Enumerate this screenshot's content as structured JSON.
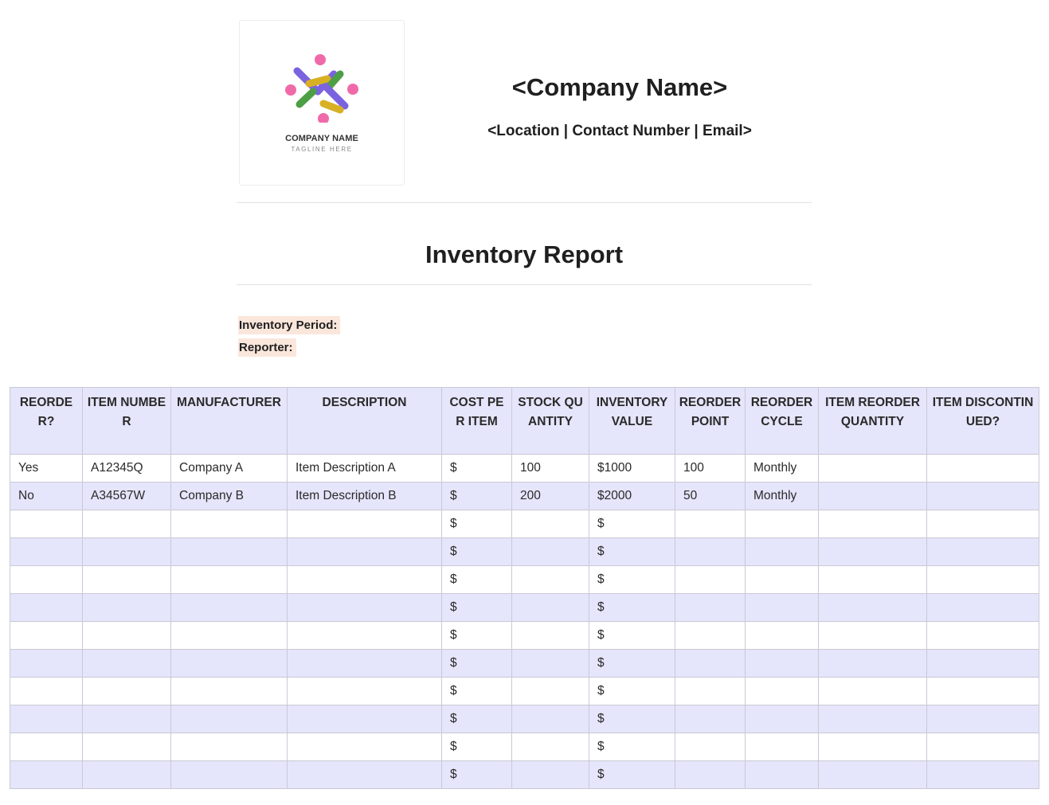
{
  "logo": {
    "name": "COMPANY NAME",
    "tagline": "TAGLINE HERE"
  },
  "header": {
    "company_name": "<Company Name>",
    "contact": "<Location | Contact Number | Email>"
  },
  "report": {
    "title": "Inventory Report",
    "period_label": "Inventory Period:",
    "reporter_label": "Reporter:"
  },
  "colors": {
    "header_bg": "#e5e5fb",
    "label_highlight": "#fbe6dc",
    "logo_purple": "#7b63e0",
    "logo_pink": "#f06aa9",
    "logo_green": "#4c9f45",
    "logo_yellow": "#d8b024"
  },
  "table": {
    "columns": [
      "REORDER?",
      "ITEM NUMBER",
      "MANUFACTURER",
      "DESCRIPTION",
      "COST PER ITEM",
      "STOCK QUANTITY",
      "INVENTORY VALUE",
      "REORDER POINT",
      "REORDER CYCLE",
      "ITEM REORDER QUANTITY",
      "ITEM DISCONTINUED?"
    ],
    "rows": [
      [
        "Yes",
        "A12345Q",
        "Company A",
        "Item Description A",
        "$",
        "100",
        "$1000",
        "100",
        "Monthly",
        "",
        ""
      ],
      [
        "No",
        "A34567W",
        "Company B",
        "Item Description B",
        "$",
        "200",
        "$2000",
        "50",
        "Monthly",
        "",
        ""
      ],
      [
        "",
        "",
        "",
        "",
        "$",
        "",
        "$",
        "",
        "",
        "",
        ""
      ],
      [
        "",
        "",
        "",
        "",
        "$",
        "",
        "$",
        "",
        "",
        "",
        ""
      ],
      [
        "",
        "",
        "",
        "",
        "$",
        "",
        "$",
        "",
        "",
        "",
        ""
      ],
      [
        "",
        "",
        "",
        "",
        "$",
        "",
        "$",
        "",
        "",
        "",
        ""
      ],
      [
        "",
        "",
        "",
        "",
        "$",
        "",
        "$",
        "",
        "",
        "",
        ""
      ],
      [
        "",
        "",
        "",
        "",
        "$",
        "",
        "$",
        "",
        "",
        "",
        ""
      ],
      [
        "",
        "",
        "",
        "",
        "$",
        "",
        "$",
        "",
        "",
        "",
        ""
      ],
      [
        "",
        "",
        "",
        "",
        "$",
        "",
        "$",
        "",
        "",
        "",
        ""
      ],
      [
        "",
        "",
        "",
        "",
        "$",
        "",
        "$",
        "",
        "",
        "",
        ""
      ],
      [
        "",
        "",
        "",
        "",
        "$",
        "",
        "$",
        "",
        "",
        "",
        ""
      ]
    ]
  }
}
